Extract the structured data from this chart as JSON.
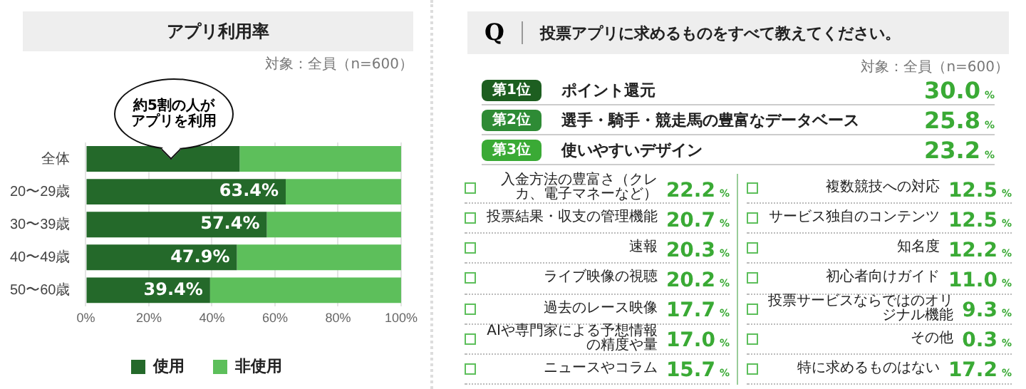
{
  "chart_data": [
    {
      "type": "bar",
      "orientation": "horizontal",
      "stacked": true,
      "title": "アプリ利用率",
      "categories": [
        "全体",
        "20〜29歳",
        "30〜39歳",
        "40〜49歳",
        "50〜60歳"
      ],
      "series": [
        {
          "name": "使用",
          "color": "#24692a",
          "values": [
            48.8,
            63.4,
            57.4,
            47.9,
            39.4
          ],
          "value_labels": [
            null,
            "63.4%",
            "57.4%",
            "47.9%",
            "39.4%"
          ]
        },
        {
          "name": "非使用",
          "color": "#5dbf5b",
          "values": [
            51.2,
            36.6,
            42.6,
            52.1,
            60.6
          ]
        }
      ],
      "xlim": [
        0,
        100
      ],
      "xticks": [
        {
          "value": 0,
          "label": "0%"
        },
        {
          "value": 20,
          "label": "20%"
        },
        {
          "value": 40,
          "label": "40%"
        },
        {
          "value": 60,
          "label": "60%"
        },
        {
          "value": 80,
          "label": "80%"
        },
        {
          "value": 100,
          "label": "100%"
        }
      ],
      "grid": "x",
      "legend": "bottom",
      "annotations": [
        "対象：全員（n=600）",
        "約5割の人がアプリを利用"
      ]
    },
    {
      "type": "other",
      "title": "投票アプリに求めるものをすべて教えてください。",
      "color": "#3aaa35",
      "categories": [
        "ポイント還元",
        "選手・騎手・競走馬の豊富なデータベース",
        "使いやすいデザイン",
        "入金方法の豊富さ（クレカ、電子マネーなど）",
        "投票結果・収支の管理機能",
        "速報",
        "ライブ映像の視聴",
        "過去のレース映像",
        "AIや専門家による予想情報の精度や量",
        "ニュースやコラム",
        "複数競技への対応",
        "サービス独自のコンテンツ",
        "知名度",
        "初心者向けガイド",
        "投票サービスならではのオリジナル機能",
        "その他",
        "特に求めるものはない"
      ],
      "values": [
        30.0,
        25.8,
        23.2,
        22.2,
        20.7,
        20.3,
        20.2,
        17.7,
        17.0,
        15.7,
        12.5,
        12.5,
        12.2,
        11.0,
        9.3,
        0.3,
        17.2
      ],
      "value_labels": [
        "30.0%",
        "25.8%",
        "23.2%",
        "22.2%",
        "20.7%",
        "20.3%",
        "20.2%",
        "17.7%",
        "17.0%",
        "15.7%",
        "12.5%",
        "12.5%",
        "12.2%",
        "11.0%",
        "9.3%",
        "0.3%",
        "17.2%"
      ],
      "annotations": [
        "Q",
        "対象：全員（n=600）",
        "第1位",
        "第2位",
        "第3位"
      ]
    }
  ]
}
